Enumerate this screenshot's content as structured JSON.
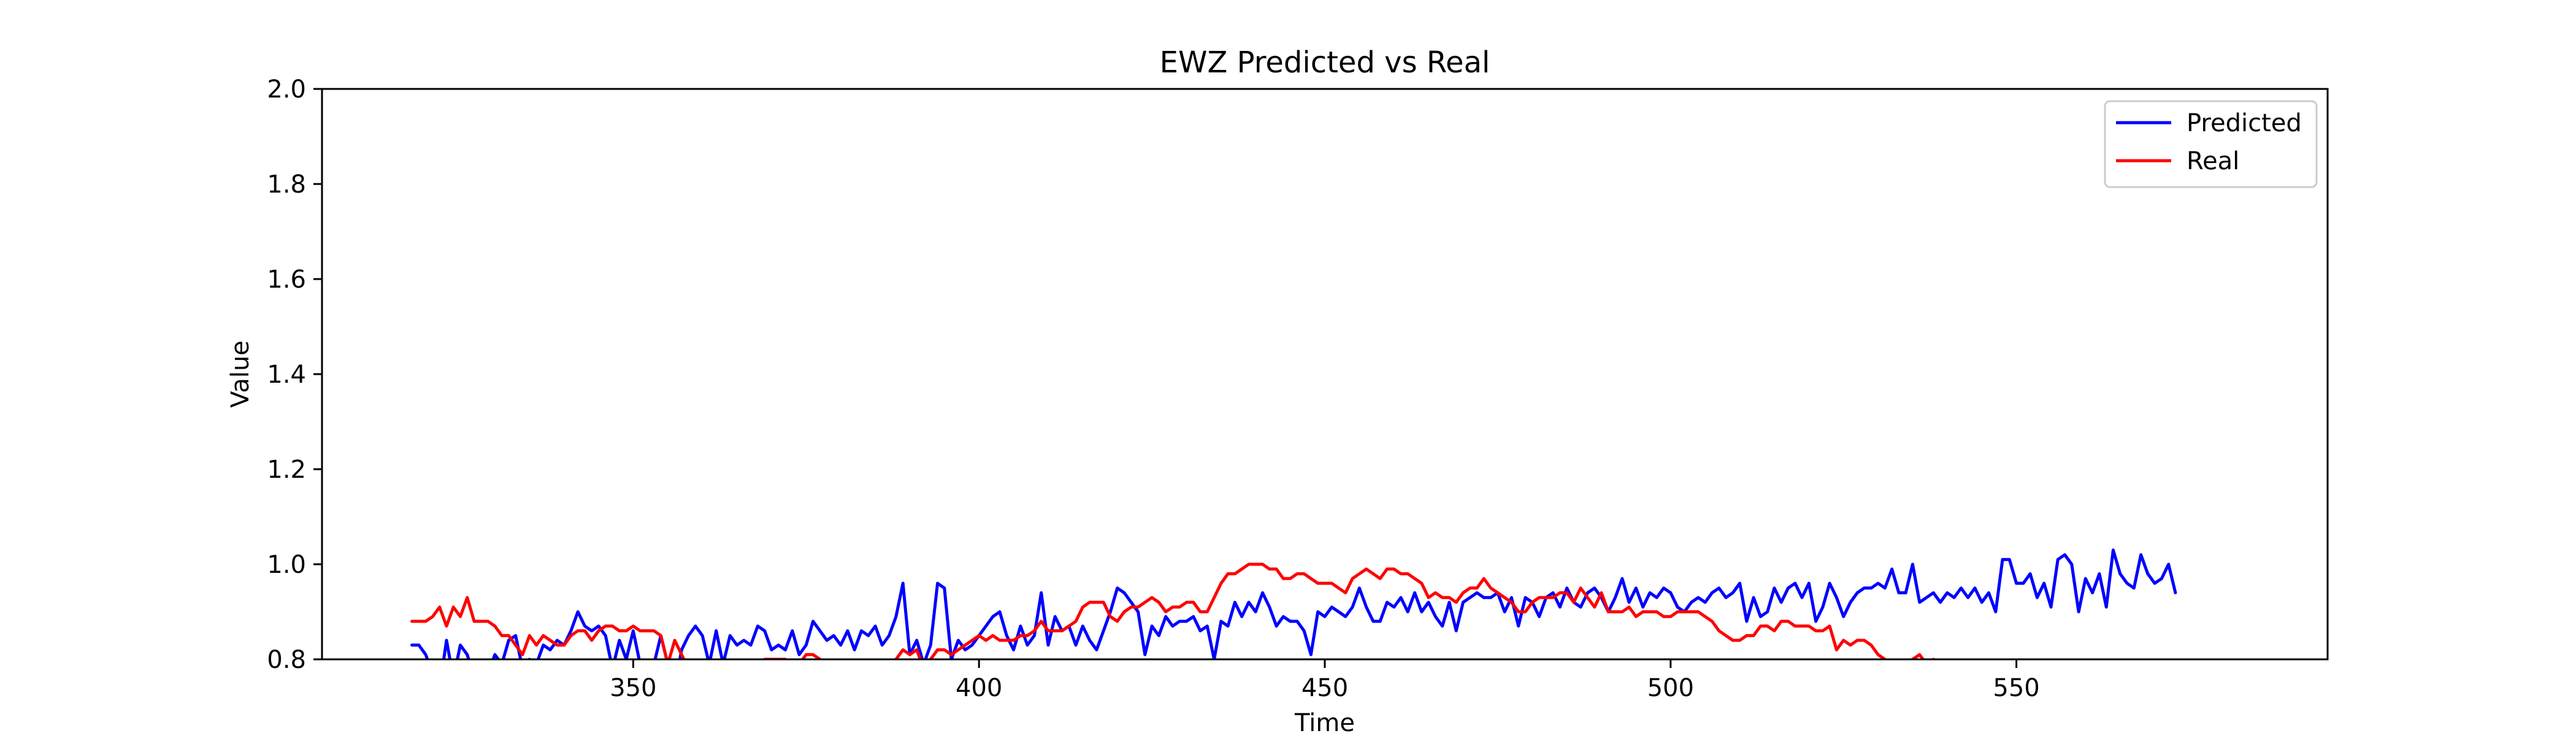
{
  "chart_data": {
    "type": "line",
    "title": "EWZ Predicted vs Real",
    "xlabel": "Time",
    "ylabel": "Value",
    "xlim": [
      305,
      595
    ],
    "ylim": [
      0.8,
      2.0
    ],
    "xticks": [
      350,
      400,
      450,
      500,
      550
    ],
    "yticks": [
      0.8,
      1.0,
      1.2,
      1.4,
      1.6,
      1.8,
      2.0
    ],
    "xtick_labels": [
      "350",
      "400",
      "450",
      "500",
      "550"
    ],
    "ytick_labels": [
      "0.8",
      "1.0",
      "1.2",
      "1.4",
      "1.6",
      "1.8",
      "2.0"
    ],
    "grid": false,
    "legend_position": "top-right",
    "series": [
      {
        "name": "Predicted",
        "color": "#0000ff",
        "x_start": 318,
        "values": [
          0.83,
          0.83,
          0.81,
          0.77,
          0.74,
          0.84,
          0.76,
          0.83,
          0.81,
          0.76,
          0.72,
          0.77,
          0.81,
          0.79,
          0.84,
          0.85,
          0.78,
          0.8,
          0.79,
          0.83,
          0.82,
          0.84,
          0.83,
          0.86,
          0.9,
          0.87,
          0.86,
          0.87,
          0.85,
          0.78,
          0.84,
          0.8,
          0.86,
          0.79,
          0.74,
          0.79,
          0.85,
          0.79,
          0.74,
          0.82,
          0.85,
          0.87,
          0.85,
          0.79,
          0.86,
          0.79,
          0.85,
          0.83,
          0.84,
          0.83,
          0.87,
          0.86,
          0.82,
          0.83,
          0.82,
          0.86,
          0.81,
          0.83,
          0.88,
          0.86,
          0.84,
          0.85,
          0.83,
          0.86,
          0.82,
          0.86,
          0.85,
          0.87,
          0.83,
          0.85,
          0.89,
          0.96,
          0.81,
          0.84,
          0.79,
          0.83,
          0.96,
          0.95,
          0.8,
          0.84,
          0.82,
          0.83,
          0.85,
          0.87,
          0.89,
          0.9,
          0.85,
          0.82,
          0.87,
          0.83,
          0.85,
          0.94,
          0.83,
          0.89,
          0.86,
          0.87,
          0.83,
          0.87,
          0.84,
          0.82,
          0.86,
          0.9,
          0.95,
          0.94,
          0.92,
          0.9,
          0.81,
          0.87,
          0.85,
          0.89,
          0.87,
          0.88,
          0.88,
          0.89,
          0.86,
          0.87,
          0.8,
          0.88,
          0.87,
          0.92,
          0.89,
          0.92,
          0.9,
          0.94,
          0.91,
          0.87,
          0.89,
          0.88,
          0.88,
          0.86,
          0.81,
          0.9,
          0.89,
          0.91,
          0.9,
          0.89,
          0.91,
          0.95,
          0.91,
          0.88,
          0.88,
          0.92,
          0.91,
          0.93,
          0.9,
          0.94,
          0.9,
          0.92,
          0.89,
          0.87,
          0.92,
          0.86,
          0.92,
          0.93,
          0.94,
          0.93,
          0.93,
          0.94,
          0.9,
          0.93,
          0.87,
          0.93,
          0.92,
          0.89,
          0.93,
          0.94,
          0.91,
          0.95,
          0.92,
          0.91,
          0.94,
          0.95,
          0.93,
          0.9,
          0.93,
          0.97,
          0.92,
          0.95,
          0.91,
          0.94,
          0.93,
          0.95,
          0.94,
          0.91,
          0.9,
          0.92,
          0.93,
          0.92,
          0.94,
          0.95,
          0.93,
          0.94,
          0.96,
          0.88,
          0.93,
          0.89,
          0.9,
          0.95,
          0.92,
          0.95,
          0.96,
          0.93,
          0.96,
          0.88,
          0.91,
          0.96,
          0.93,
          0.89,
          0.92,
          0.94,
          0.95,
          0.95,
          0.96,
          0.95,
          0.99,
          0.94,
          0.94,
          1.0,
          0.92,
          0.93,
          0.94,
          0.92,
          0.94,
          0.93,
          0.95,
          0.93,
          0.95,
          0.92,
          0.94,
          0.9,
          1.01,
          1.01,
          0.96,
          0.96,
          0.98,
          0.93,
          0.96,
          0.91,
          1.01,
          1.02,
          1.0,
          0.9,
          0.97,
          0.94,
          0.98,
          0.91,
          1.03,
          0.98,
          0.96,
          0.95,
          1.02,
          0.98,
          0.96,
          0.97,
          1.0,
          0.94
        ]
      },
      {
        "name": "Real",
        "color": "#ff0000",
        "x_start": 318,
        "values": [
          0.88,
          0.88,
          0.88,
          0.89,
          0.91,
          0.87,
          0.91,
          0.89,
          0.93,
          0.88,
          0.88,
          0.88,
          0.87,
          0.85,
          0.85,
          0.83,
          0.81,
          0.85,
          0.83,
          0.85,
          0.84,
          0.83,
          0.83,
          0.85,
          0.86,
          0.86,
          0.84,
          0.86,
          0.87,
          0.87,
          0.86,
          0.86,
          0.87,
          0.86,
          0.86,
          0.86,
          0.85,
          0.79,
          0.84,
          0.81,
          0.78,
          0.79,
          0.75,
          0.76,
          0.75,
          0.76,
          0.74,
          0.76,
          0.77,
          0.77,
          0.73,
          0.8,
          0.8,
          0.8,
          0.8,
          0.79,
          0.79,
          0.81,
          0.81,
          0.8,
          0.79,
          0.77,
          0.78,
          0.78,
          0.75,
          0.75,
          0.79,
          0.78,
          0.78,
          0.79,
          0.8,
          0.82,
          0.81,
          0.82,
          0.78,
          0.8,
          0.82,
          0.82,
          0.81,
          0.82,
          0.83,
          0.84,
          0.85,
          0.84,
          0.85,
          0.84,
          0.84,
          0.84,
          0.85,
          0.85,
          0.86,
          0.88,
          0.86,
          0.86,
          0.86,
          0.87,
          0.88,
          0.91,
          0.92,
          0.92,
          0.92,
          0.89,
          0.88,
          0.9,
          0.91,
          0.91,
          0.92,
          0.93,
          0.92,
          0.9,
          0.91,
          0.91,
          0.92,
          0.92,
          0.9,
          0.9,
          0.93,
          0.96,
          0.98,
          0.98,
          0.99,
          1.0,
          1.0,
          1.0,
          0.99,
          0.99,
          0.97,
          0.97,
          0.98,
          0.98,
          0.97,
          0.96,
          0.96,
          0.96,
          0.95,
          0.94,
          0.97,
          0.98,
          0.99,
          0.98,
          0.97,
          0.99,
          0.99,
          0.98,
          0.98,
          0.97,
          0.96,
          0.93,
          0.94,
          0.93,
          0.93,
          0.92,
          0.94,
          0.95,
          0.95,
          0.97,
          0.95,
          0.94,
          0.93,
          0.92,
          0.9,
          0.9,
          0.92,
          0.93,
          0.93,
          0.93,
          0.94,
          0.94,
          0.92,
          0.95,
          0.93,
          0.91,
          0.94,
          0.9,
          0.9,
          0.9,
          0.91,
          0.89,
          0.9,
          0.9,
          0.9,
          0.89,
          0.89,
          0.9,
          0.9,
          0.9,
          0.9,
          0.89,
          0.88,
          0.86,
          0.85,
          0.84,
          0.84,
          0.85,
          0.85,
          0.87,
          0.87,
          0.86,
          0.88,
          0.88,
          0.87,
          0.87,
          0.87,
          0.86,
          0.86,
          0.87,
          0.82,
          0.84,
          0.83,
          0.84,
          0.84,
          0.83,
          0.81,
          0.8,
          0.78,
          0.78,
          0.78,
          0.8,
          0.81,
          0.79,
          0.8,
          0.79,
          0.78,
          0.78
        ]
      }
    ]
  }
}
